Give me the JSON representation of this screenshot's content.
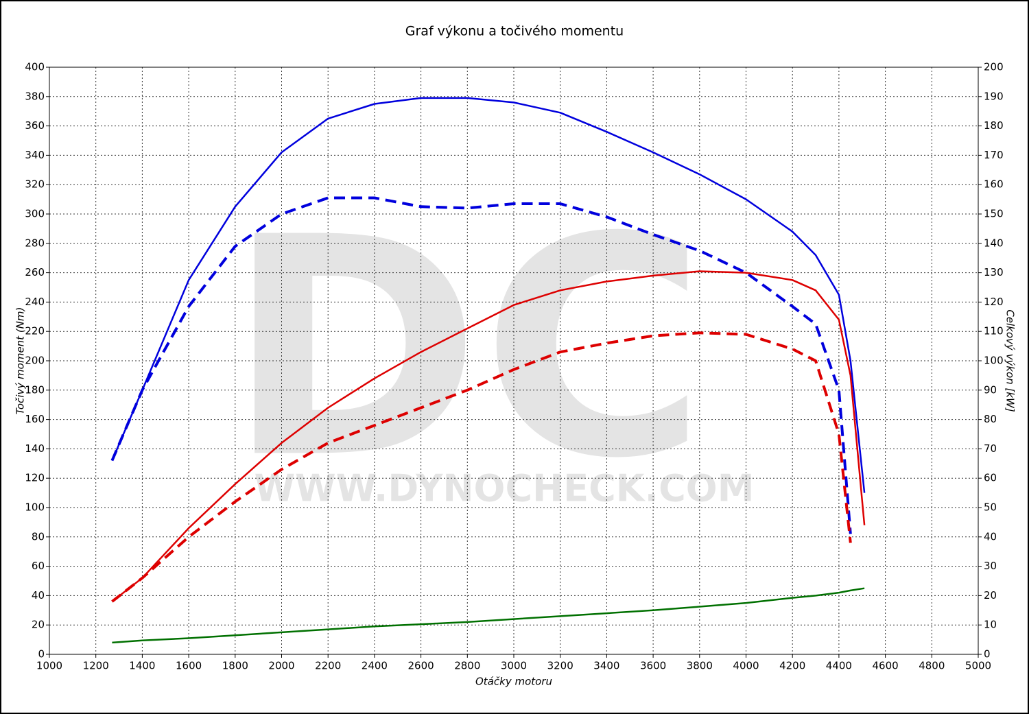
{
  "chart_data": {
    "type": "line",
    "title": "Graf výkonu a točivého momentu",
    "x_label": "Otáčky motoru",
    "y_label": "Točivý moment (Nm)",
    "y2_label": "Celkový výkon [kW]",
    "watermark": "DC",
    "watermark_url": "WWW.DYNOCHECK.COM",
    "x": [
      1270,
      1400,
      1600,
      1800,
      2000,
      2200,
      2400,
      2600,
      2800,
      3000,
      3200,
      3400,
      3600,
      3800,
      4000,
      4200,
      4300,
      4400,
      4450,
      4510
    ],
    "series": [
      {
        "color": "#0000dd",
        "dash": false,
        "axis": "y",
        "values": [
          132,
          180,
          255,
          305,
          342,
          365,
          375,
          379,
          379,
          376,
          369,
          356,
          342,
          327,
          310,
          288,
          272,
          245,
          200,
          110
        ]
      },
      {
        "color": "#0000dd",
        "dash": true,
        "axis": "y",
        "values": [
          132,
          180,
          237,
          278,
          300,
          311,
          311,
          305,
          304,
          307,
          307,
          298,
          286,
          275,
          260,
          237,
          225,
          180,
          82,
          null
        ]
      },
      {
        "color": "#dd0000",
        "dash": false,
        "axis": "y2",
        "values": [
          18,
          26,
          43,
          58,
          72,
          84,
          94,
          103,
          111,
          119,
          124,
          127,
          129,
          130.5,
          130,
          127.5,
          124,
          114,
          95,
          44
        ]
      },
      {
        "color": "#dd0000",
        "dash": true,
        "axis": "y2",
        "values": [
          18,
          26,
          40,
          52,
          63,
          72,
          78,
          84,
          90,
          97,
          103,
          106,
          108.5,
          109.5,
          109,
          104,
          100,
          75,
          38,
          null
        ]
      },
      {
        "color": "#007000",
        "dash": false,
        "axis": "y",
        "values": [
          8,
          9.5,
          11,
          13,
          15,
          17,
          19,
          20.5,
          22,
          24,
          26,
          28,
          30,
          32.5,
          35,
          38.5,
          40,
          42,
          43.5,
          45
        ]
      }
    ],
    "xlim": [
      1000,
      5000
    ],
    "xticks": [
      1000,
      1200,
      1400,
      1600,
      1800,
      2000,
      2200,
      2400,
      2600,
      2800,
      3000,
      3200,
      3400,
      3600,
      3800,
      4000,
      4200,
      4400,
      4600,
      4800,
      5000
    ],
    "ylim": [
      0,
      400
    ],
    "yticks": [
      0,
      20,
      40,
      60,
      80,
      100,
      120,
      140,
      160,
      180,
      200,
      220,
      240,
      260,
      280,
      300,
      320,
      340,
      360,
      380,
      400
    ],
    "y2lim": [
      0,
      200
    ],
    "y2ticks": [
      0,
      10,
      20,
      30,
      40,
      50,
      60,
      70,
      80,
      90,
      100,
      110,
      120,
      130,
      140,
      150,
      160,
      170,
      180,
      190,
      200
    ],
    "grid": true
  }
}
